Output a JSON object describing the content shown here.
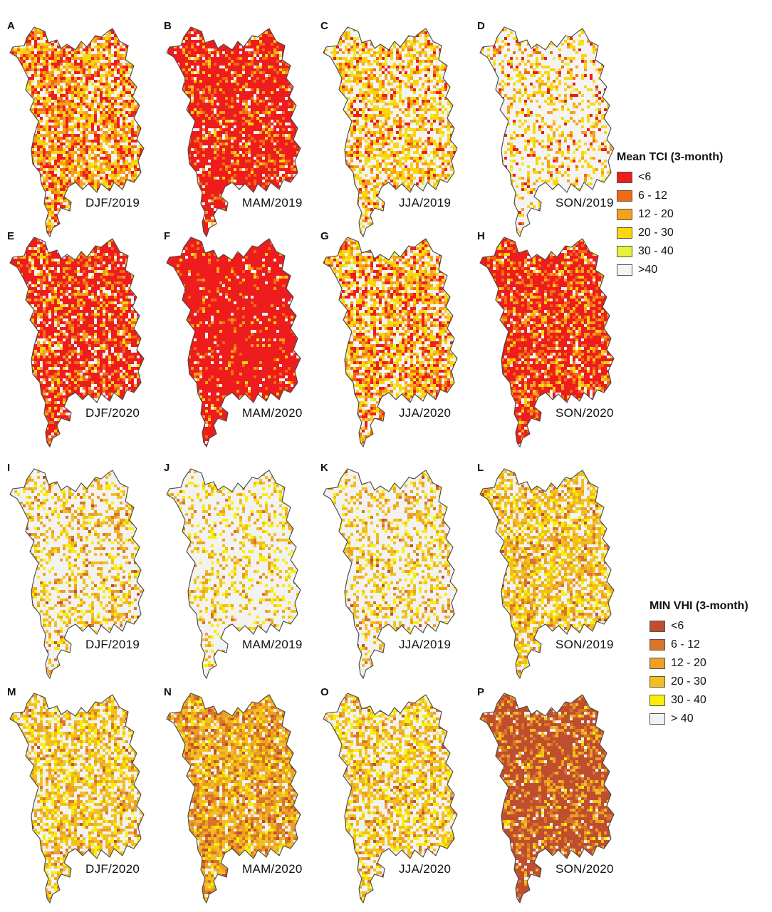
{
  "rows": [
    {
      "top": 30,
      "panels": [
        {
          "letter": "A",
          "season": "DJF/2019",
          "palette": "tci",
          "mix": [
            0.22,
            0.12,
            0.2,
            0.24,
            0.02,
            0.2
          ]
        },
        {
          "letter": "B",
          "season": "MAM/2019",
          "palette": "tci",
          "mix": [
            0.7,
            0.1,
            0.06,
            0.06,
            0.0,
            0.08
          ]
        },
        {
          "letter": "C",
          "season": "JJA/2019",
          "palette": "tci",
          "mix": [
            0.08,
            0.06,
            0.14,
            0.26,
            0.04,
            0.42
          ]
        },
        {
          "letter": "D",
          "season": "SON/2019",
          "palette": "tci",
          "mix": [
            0.04,
            0.03,
            0.08,
            0.16,
            0.02,
            0.67
          ]
        }
      ]
    },
    {
      "top": 325,
      "panels": [
        {
          "letter": "E",
          "season": "DJF/2020",
          "palette": "tci",
          "mix": [
            0.58,
            0.12,
            0.1,
            0.08,
            0.0,
            0.12
          ]
        },
        {
          "letter": "F",
          "season": "MAM/2020",
          "palette": "tci",
          "mix": [
            0.84,
            0.06,
            0.03,
            0.03,
            0.0,
            0.04
          ]
        },
        {
          "letter": "G",
          "season": "JJA/2020",
          "palette": "tci",
          "mix": [
            0.18,
            0.1,
            0.16,
            0.26,
            0.04,
            0.26
          ]
        },
        {
          "letter": "H",
          "season": "SON/2020",
          "palette": "tci",
          "mix": [
            0.58,
            0.16,
            0.1,
            0.08,
            0.0,
            0.08
          ]
        }
      ]
    },
    {
      "top": 650,
      "panels": [
        {
          "letter": "I",
          "season": "DJF/2019",
          "palette": "vhi",
          "mix": [
            0.01,
            0.04,
            0.08,
            0.16,
            0.1,
            0.61
          ]
        },
        {
          "letter": "J",
          "season": "MAM/2019",
          "palette": "vhi",
          "mix": [
            0.0,
            0.02,
            0.06,
            0.12,
            0.1,
            0.7
          ]
        },
        {
          "letter": "K",
          "season": "JJA/2019",
          "palette": "vhi",
          "mix": [
            0.01,
            0.04,
            0.08,
            0.16,
            0.1,
            0.61
          ]
        },
        {
          "letter": "L",
          "season": "SON/2019",
          "palette": "vhi",
          "mix": [
            0.02,
            0.08,
            0.16,
            0.3,
            0.14,
            0.3
          ]
        }
      ]
    },
    {
      "top": 965,
      "panels": [
        {
          "letter": "M",
          "season": "DJF/2020",
          "palette": "vhi",
          "mix": [
            0.01,
            0.06,
            0.14,
            0.28,
            0.16,
            0.35
          ]
        },
        {
          "letter": "N",
          "season": "MAM/2020",
          "palette": "vhi",
          "mix": [
            0.06,
            0.2,
            0.24,
            0.28,
            0.1,
            0.12
          ]
        },
        {
          "letter": "O",
          "season": "JJA/2020",
          "palette": "vhi",
          "mix": [
            0.01,
            0.06,
            0.12,
            0.26,
            0.16,
            0.39
          ]
        },
        {
          "letter": "P",
          "season": "SON/2020",
          "palette": "vhi",
          "mix": [
            0.62,
            0.12,
            0.1,
            0.08,
            0.02,
            0.06
          ]
        }
      ]
    }
  ],
  "palettes": {
    "tci": [
      "#ee1c1c",
      "#f26a12",
      "#f5a21a",
      "#fbd60a",
      "#e4f23c",
      "#f4f4f4"
    ],
    "vhi": [
      "#bf4e2e",
      "#d97428",
      "#eda024",
      "#f2c01e",
      "#f8f000",
      "#f2f2f2"
    ]
  },
  "legend_tci": {
    "title": "Mean TCI (3-month)",
    "items": [
      {
        "label": "<6",
        "color": "#ee1c1c"
      },
      {
        "label": "6 - 12",
        "color": "#f26a12"
      },
      {
        "label": "12 - 20",
        "color": "#f5a21a"
      },
      {
        "label": "20 - 30",
        "color": "#fbd60a"
      },
      {
        "label": "30 - 40",
        "color": "#e4f23c"
      },
      {
        "label": ">40",
        "color": "#f4f4f4"
      }
    ]
  },
  "legend_vhi": {
    "title": "MIN VHI (3-month)",
    "items": [
      {
        "label": "<6",
        "color": "#bf4e2e"
      },
      {
        "label": "6 - 12",
        "color": "#d97428"
      },
      {
        "label": "12 - 20",
        "color": "#eda024"
      },
      {
        "label": "20 - 30",
        "color": "#f2c01e"
      },
      {
        "label": "30 - 40",
        "color": "#f8f000"
      },
      {
        "label": "> 40",
        "color": "#f2f2f2"
      }
    ]
  }
}
